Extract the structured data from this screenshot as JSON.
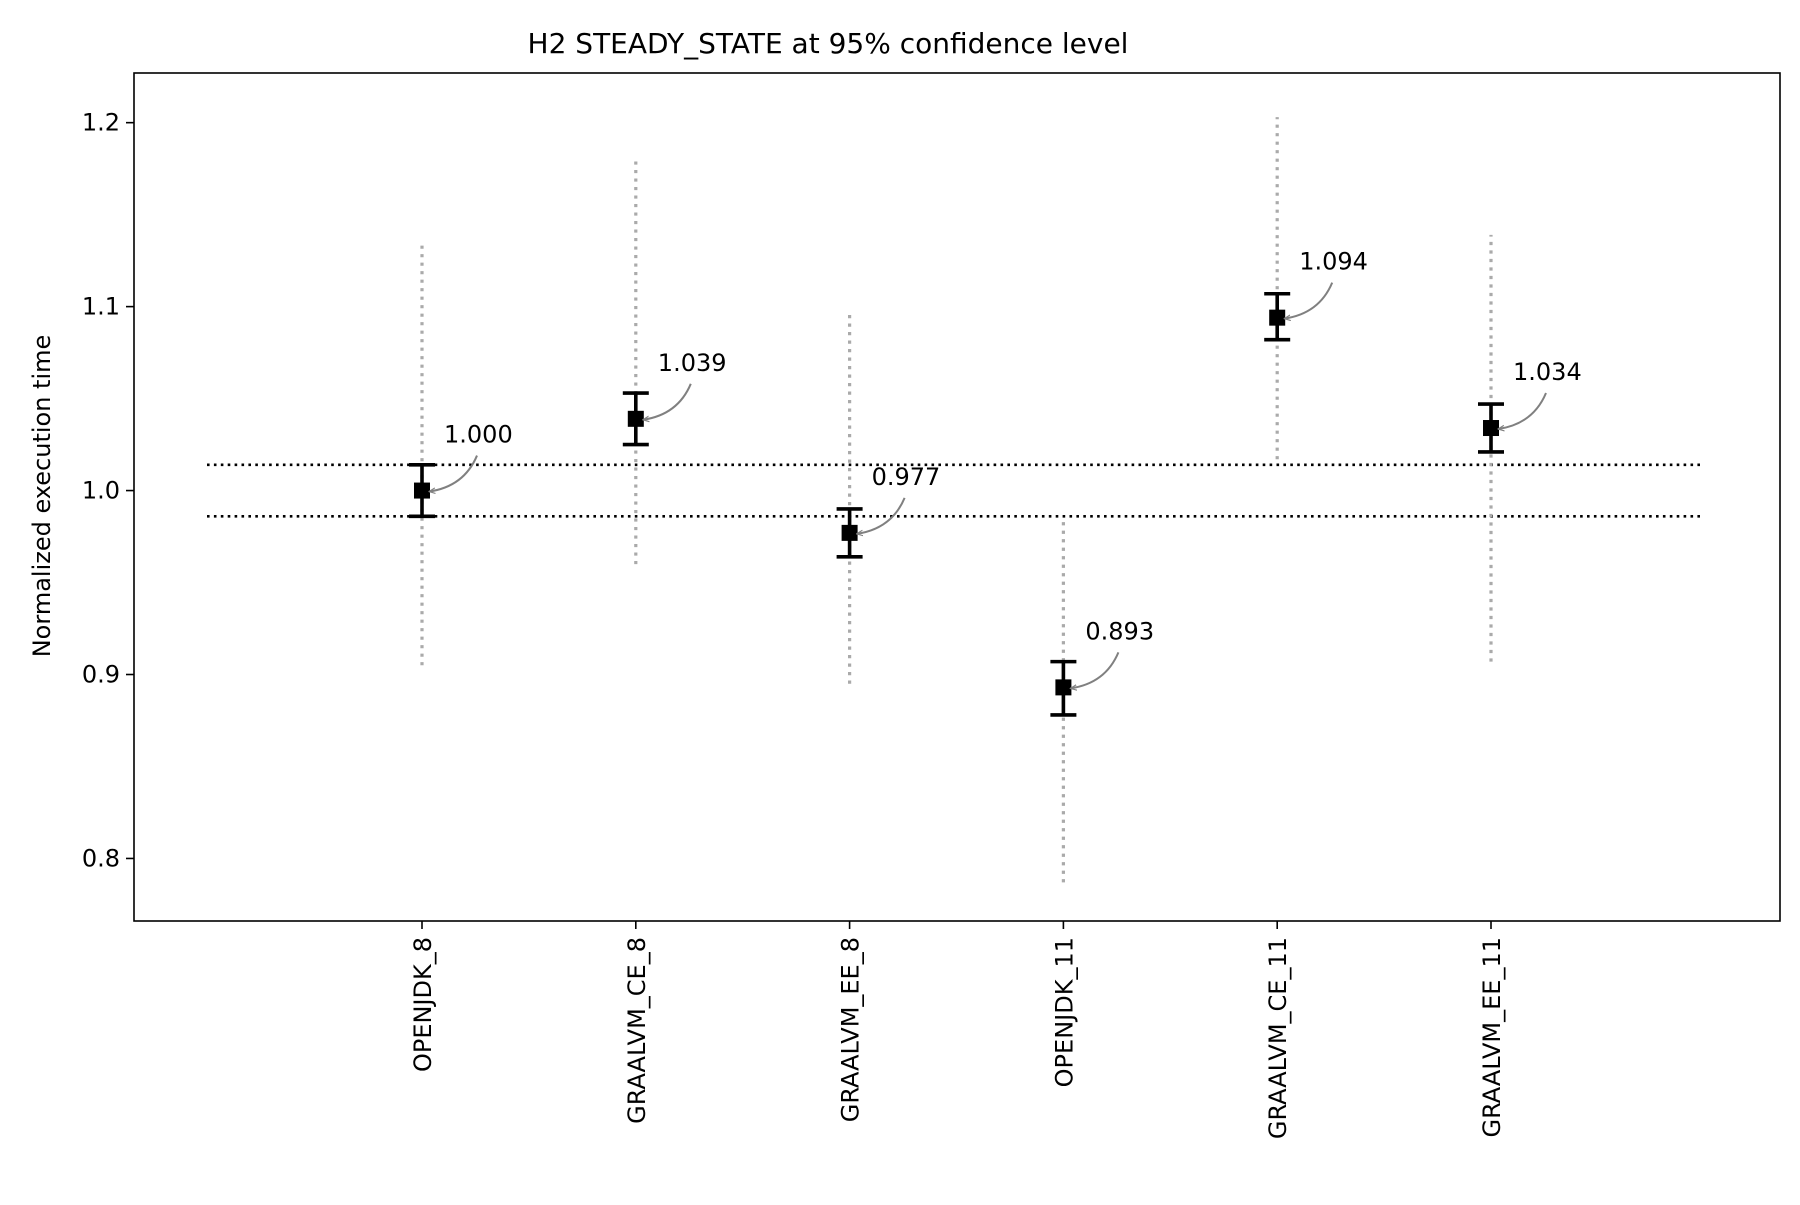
{
  "chart_data": {
    "type": "scatter",
    "title": "H2 STEADY_STATE at 95% confidence level",
    "xlabel": "",
    "ylabel": "Normalized execution time",
    "ylim": [
      0.766,
      1.227
    ],
    "yticks": [
      0.8,
      0.9,
      1.0,
      1.1,
      1.2
    ],
    "ytick_labels": [
      "0.8",
      "0.9",
      "1.0",
      "1.1",
      "1.2"
    ],
    "grid": false,
    "categories": [
      "OPENJDK_8",
      "GRAALVM_CE_8",
      "GRAALVM_EE_8",
      "OPENJDK_11",
      "GRAALVM_CE_11",
      "GRAALVM_EE_11"
    ],
    "values": [
      1.0,
      1.039,
      0.977,
      0.893,
      1.094,
      1.034
    ],
    "labels": [
      "1.000",
      "1.039",
      "0.977",
      "0.893",
      "1.094",
      "1.034"
    ],
    "ci_lower": [
      0.986,
      1.025,
      0.964,
      0.878,
      1.082,
      1.021
    ],
    "ci_upper": [
      1.014,
      1.053,
      0.99,
      0.907,
      1.107,
      1.047
    ],
    "range_lower": [
      0.905,
      0.96,
      0.895,
      0.787,
      1.017,
      0.907
    ],
    "range_upper": [
      1.135,
      1.18,
      1.097,
      0.985,
      1.203,
      1.139
    ],
    "reference_lines": [
      1.014,
      0.986
    ],
    "colors": {
      "marker": "#000000",
      "range_line": "#aaaaaa",
      "annotation_arrow": "#808080",
      "reference_line": "#000000"
    }
  }
}
